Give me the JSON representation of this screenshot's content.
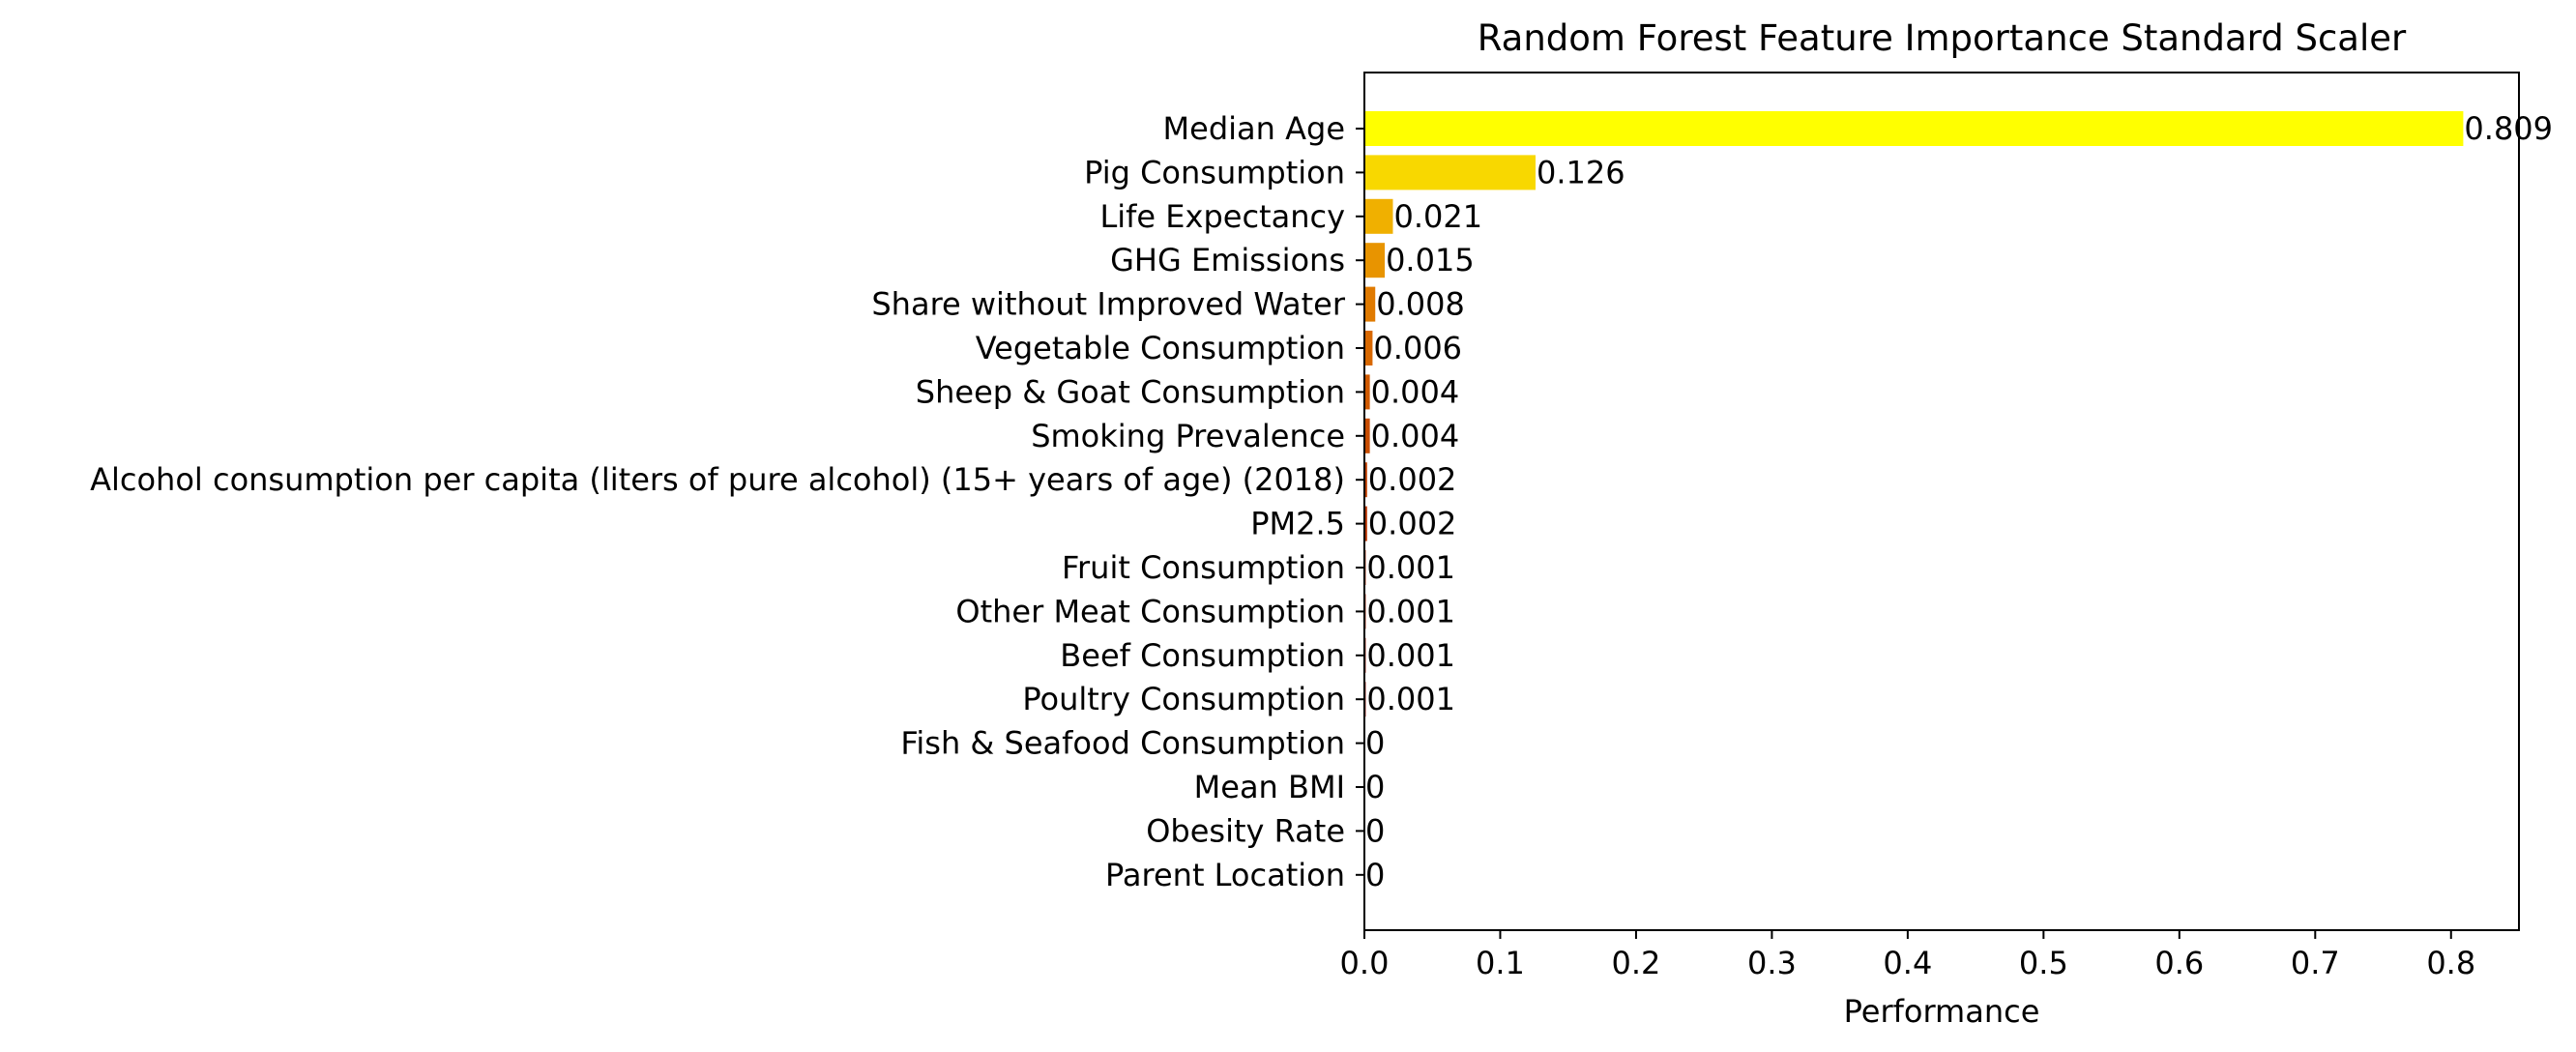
{
  "chart_data": {
    "type": "bar",
    "orientation": "horizontal",
    "title": "Random Forest Feature Importance Standard Scaler",
    "xlabel": "Performance",
    "ylabel": "",
    "xlim": [
      0,
      0.85
    ],
    "x_ticks": [
      0.0,
      0.1,
      0.2,
      0.3,
      0.4,
      0.5,
      0.6,
      0.7,
      0.8
    ],
    "x_tick_labels": [
      "0.0",
      "0.1",
      "0.2",
      "0.3",
      "0.4",
      "0.5",
      "0.6",
      "0.7",
      "0.8"
    ],
    "grid": false,
    "colormap": "autumn",
    "categories": [
      "Median Age",
      "Pig Consumption",
      "Life Expectancy",
      "GHG Emissions",
      "Share without Improved Water",
      "Vegetable Consumption",
      "Sheep & Goat Consumption",
      "Smoking Prevalence",
      "Alcohol consumption per capita (liters of pure alcohol) (15+ years of age) (2018)",
      "PM2.5",
      "Fruit Consumption",
      "Other Meat Consumption",
      "Beef Consumption",
      "Poultry Consumption",
      "Fish & Seafood Consumption",
      "Mean BMI",
      "Obesity Rate",
      "Parent Location"
    ],
    "values": [
      0.809,
      0.126,
      0.021,
      0.015,
      0.008,
      0.006,
      0.004,
      0.004,
      0.002,
      0.002,
      0.001,
      0.001,
      0.001,
      0.001,
      0,
      0,
      0,
      0
    ],
    "value_labels": [
      "0.809",
      "0.126",
      "0.021",
      "0.015",
      "0.008",
      "0.006",
      "0.004",
      "0.004",
      "0.002",
      "0.002",
      "0.001",
      "0.001",
      "0.001",
      "0.001",
      "0",
      "0",
      "0",
      "0"
    ],
    "colors": [
      "#ffff00",
      "#f8d800",
      "#f0b000",
      "#e89400",
      "#e07a00",
      "#d86800",
      "#d05a00",
      "#c84d00",
      "#c04000",
      "#b83400",
      "#b02800",
      "#a81e00",
      "#a01600",
      "#980e00",
      "#900800",
      "#880400",
      "#800200",
      "#780000"
    ]
  }
}
